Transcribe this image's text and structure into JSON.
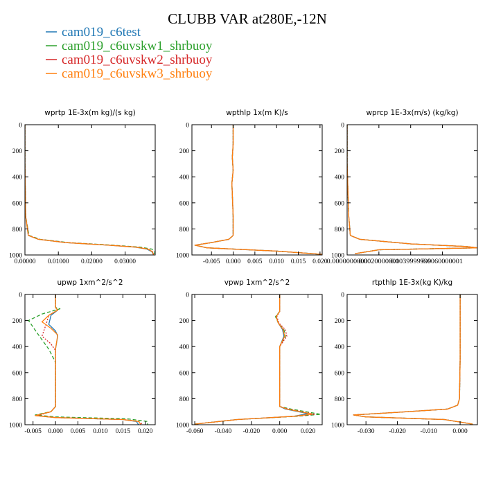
{
  "title": "CLUBB VAR at280E,-12N",
  "colors": {
    "cam019_c6test": "#1f77b4",
    "cam019_c6uvskw1_shrbuoy": "#2ca02c",
    "cam019_c6uvskw2_shrbuoy": "#d62728",
    "cam019_c6uvskw3_shrbuoy": "#ff7f0e"
  },
  "legend": [
    {
      "name": "cam019_c6test",
      "color": "#1f77b4"
    },
    {
      "name": "cam019_c6uvskw1_shrbuoy",
      "color": "#2ca02c"
    },
    {
      "name": "cam019_c6uvskw2_shrbuoy",
      "color": "#d62728"
    },
    {
      "name": "cam019_c6uvskw3_shrbuoy",
      "color": "#ff7f0e"
    }
  ],
  "chart_data": [
    {
      "type": "line",
      "title": "wprtp  1E-3x(m kg)/(s kg)",
      "xlabel": "",
      "ylabel": "",
      "xlim": [
        0,
        0.039
      ],
      "ylim": [
        1000,
        0
      ],
      "xticks": [
        "0.00000",
        "0.01000",
        "0.02000",
        "0.03000"
      ],
      "xtick_values": [
        0,
        0.01,
        0.02,
        0.03
      ],
      "yticks": [
        0,
        200,
        400,
        600,
        800,
        1000
      ],
      "series": [
        {
          "name": "cam019_c6test",
          "x": [
            0.0,
            0.0,
            0.0002,
            0.001,
            0.004,
            0.012,
            0.025,
            0.033,
            0.0365,
            0.038,
            0.0385
          ],
          "y": [
            0,
            300,
            700,
            850,
            880,
            905,
            925,
            940,
            955,
            975,
            1000
          ]
        },
        {
          "name": "cam019_c6uvskw1_shrbuoy",
          "x": [
            0.0,
            0.0,
            0.0002,
            0.0012,
            0.0045,
            0.013,
            0.0265,
            0.0345,
            0.038,
            0.039,
            0.0385
          ],
          "y": [
            0,
            300,
            700,
            850,
            880,
            905,
            925,
            940,
            955,
            975,
            1000
          ]
        },
        {
          "name": "cam019_c6uvskw2_shrbuoy",
          "x": [
            0.0,
            0.0,
            0.0002,
            0.0011,
            0.0042,
            0.0125,
            0.0255,
            0.0335,
            0.037,
            0.0383,
            0.0385
          ],
          "y": [
            0,
            300,
            700,
            850,
            880,
            905,
            925,
            940,
            955,
            975,
            1000
          ]
        },
        {
          "name": "cam019_c6uvskw3_shrbuoy",
          "x": [
            0.0,
            0.0,
            0.0002,
            0.001,
            0.004,
            0.012,
            0.025,
            0.0332,
            0.0368,
            0.0382,
            0.0385
          ],
          "y": [
            0,
            300,
            700,
            850,
            880,
            905,
            925,
            940,
            955,
            975,
            1000
          ]
        }
      ]
    },
    {
      "type": "line",
      "title": "wpthlp  1x(m K)/s",
      "xlabel": "",
      "ylabel": "",
      "xlim": [
        -0.0095,
        0.0205
      ],
      "ylim": [
        1000,
        0
      ],
      "xticks": [
        "-0.005",
        "0.000",
        "0.005",
        "0.010",
        "0.015",
        "0.020"
      ],
      "xtick_values": [
        -0.005,
        0,
        0.005,
        0.01,
        0.015,
        0.02
      ],
      "yticks": [
        0,
        200,
        400,
        600,
        800,
        1000
      ],
      "series": [
        {
          "name": "cam019_c6test",
          "x": [
            0.0,
            0.0,
            -0.0002,
            0.0,
            -0.0003,
            0.0,
            0.0,
            -0.001,
            -0.005,
            -0.0088,
            -0.006,
            0.01,
            0.0205
          ],
          "y": [
            0,
            150,
            250,
            350,
            450,
            700,
            850,
            880,
            905,
            925,
            945,
            970,
            995
          ]
        },
        {
          "name": "cam019_c6uvskw1_shrbuoy",
          "x": [
            0.0,
            0.0,
            -0.0002,
            0.0,
            -0.0003,
            0.0,
            0.0,
            -0.001,
            -0.005,
            -0.0088,
            -0.006,
            0.01,
            0.0205
          ],
          "y": [
            0,
            150,
            250,
            350,
            450,
            700,
            850,
            880,
            905,
            925,
            945,
            970,
            995
          ]
        },
        {
          "name": "cam019_c6uvskw2_shrbuoy",
          "x": [
            0.0,
            0.0,
            -0.0002,
            0.0,
            -0.0003,
            0.0,
            0.0,
            -0.001,
            -0.005,
            -0.0088,
            -0.006,
            0.01,
            0.0205
          ],
          "y": [
            0,
            150,
            250,
            350,
            450,
            700,
            850,
            880,
            905,
            925,
            945,
            970,
            995
          ]
        },
        {
          "name": "cam019_c6uvskw3_shrbuoy",
          "x": [
            0.0,
            0.0,
            -0.0002,
            0.0,
            -0.0003,
            0.0,
            0.0,
            -0.001,
            -0.005,
            -0.0088,
            -0.006,
            0.01,
            0.0205
          ],
          "y": [
            0,
            150,
            250,
            350,
            450,
            700,
            850,
            880,
            905,
            925,
            945,
            970,
            995
          ]
        }
      ]
    },
    {
      "type": "line",
      "title": "wprcp  1E-3x(m/s) (kg/kg)",
      "xlabel": "",
      "ylabel": "",
      "xlim": [
        0,
        0.0082
      ],
      "ylim": [
        1000,
        0
      ],
      "xticks": [
        "0.0000000000",
        "0.0020000001",
        "0.0039999999",
        "0.0060000001"
      ],
      "xtick_values": [
        0,
        0.002,
        0.004,
        0.006
      ],
      "yticks": [
        0,
        200,
        400,
        600,
        800,
        1000
      ],
      "series": [
        {
          "name": "cam019_c6test",
          "x": [
            0.0,
            0.0,
            0.0001,
            0.0002,
            0.0008,
            0.004,
            0.0075,
            0.0082,
            0.002,
            0.0005
          ],
          "y": [
            0,
            300,
            700,
            850,
            880,
            915,
            935,
            945,
            960,
            990
          ]
        },
        {
          "name": "cam019_c6uvskw1_shrbuoy",
          "x": [
            0.0,
            0.0,
            0.0001,
            0.0002,
            0.0008,
            0.004,
            0.0075,
            0.0082,
            0.002,
            0.0005
          ],
          "y": [
            0,
            300,
            700,
            850,
            880,
            915,
            935,
            945,
            960,
            990
          ]
        },
        {
          "name": "cam019_c6uvskw2_shrbuoy",
          "x": [
            0.0,
            0.0,
            0.0001,
            0.0002,
            0.0008,
            0.004,
            0.0075,
            0.0082,
            0.002,
            0.0005
          ],
          "y": [
            0,
            300,
            700,
            850,
            880,
            915,
            935,
            945,
            960,
            990
          ]
        },
        {
          "name": "cam019_c6uvskw3_shrbuoy",
          "x": [
            0.0,
            0.0,
            0.0001,
            0.0002,
            0.0008,
            0.004,
            0.0075,
            0.0082,
            0.002,
            0.0005
          ],
          "y": [
            0,
            300,
            700,
            850,
            880,
            915,
            935,
            945,
            960,
            990
          ]
        }
      ]
    },
    {
      "type": "line",
      "title": "upwp  1xm^2/s^2",
      "xlabel": "",
      "ylabel": "",
      "xlim": [
        -0.0068,
        0.0222
      ],
      "ylim": [
        1000,
        0
      ],
      "xticks": [
        "-0.005",
        "0.000",
        "0.005",
        "0.010",
        "0.015",
        "0.020"
      ],
      "xtick_values": [
        -0.005,
        0,
        0.005,
        0.01,
        0.015,
        0.02
      ],
      "yticks": [
        0,
        200,
        400,
        600,
        800,
        1000
      ],
      "series": [
        {
          "name": "cam019_c6test",
          "x": [
            0.0,
            0.0,
            0.0005,
            -0.001,
            -0.0015,
            0.0,
            0.0005,
            0.0,
            0.0,
            -0.001,
            -0.0045,
            0.0,
            0.015,
            0.018,
            0.0185
          ],
          "y": [
            0,
            100,
            120,
            160,
            230,
            280,
            320,
            420,
            860,
            900,
            930,
            945,
            960,
            975,
            1000
          ]
        },
        {
          "name": "cam019_c6uvskw1_shrbuoy",
          "x": [
            0.0,
            0.0,
            0.001,
            -0.003,
            -0.006,
            -0.004,
            -0.0015,
            0.0,
            0.0,
            -0.001,
            -0.0045,
            0.0,
            0.016,
            0.0205,
            0.0205
          ],
          "y": [
            0,
            100,
            110,
            150,
            200,
            300,
            420,
            520,
            860,
            900,
            925,
            940,
            955,
            975,
            1000
          ]
        },
        {
          "name": "cam019_c6uvskw2_shrbuoy",
          "x": [
            0.0,
            0.0,
            0.0005,
            -0.0015,
            -0.002,
            -0.003,
            -0.001,
            0.0,
            0.0,
            -0.001,
            -0.004,
            0.0,
            0.015,
            0.0185,
            0.0195
          ],
          "y": [
            0,
            100,
            120,
            160,
            220,
            320,
            380,
            430,
            860,
            900,
            930,
            945,
            960,
            975,
            1000
          ]
        },
        {
          "name": "cam019_c6uvskw3_shrbuoy",
          "x": [
            0.0,
            0.0,
            0.0005,
            -0.0015,
            -0.003,
            -0.001,
            0.0005,
            0.0,
            0.0,
            -0.001,
            -0.0045,
            0.0,
            0.015,
            0.0185,
            0.019
          ],
          "y": [
            0,
            100,
            120,
            160,
            210,
            260,
            310,
            420,
            860,
            900,
            930,
            945,
            960,
            975,
            1000
          ]
        }
      ]
    },
    {
      "type": "line",
      "title": "vpwp  1xm^2/s^2",
      "xlabel": "",
      "ylabel": "",
      "xlim": [
        -0.062,
        0.03
      ],
      "ylim": [
        1000,
        0
      ],
      "xticks": [
        "-0.060",
        "-0.040",
        "-0.020",
        "0.000",
        "0.020"
      ],
      "xtick_values": [
        -0.06,
        -0.04,
        -0.02,
        0,
        0.02
      ],
      "yticks": [
        0,
        200,
        400,
        600,
        800,
        1000
      ],
      "series": [
        {
          "name": "cam019_c6test",
          "x": [
            0.0,
            0.0,
            -0.0025,
            -0.001,
            0.002,
            0.003,
            0.0,
            0.0,
            0.004,
            0.02,
            0.01,
            -0.03,
            -0.06
          ],
          "y": [
            0,
            130,
            170,
            220,
            270,
            320,
            400,
            860,
            880,
            915,
            935,
            960,
            995
          ]
        },
        {
          "name": "cam019_c6uvskw1_shrbuoy",
          "x": [
            0.0,
            0.0,
            -0.003,
            -0.001,
            0.003,
            0.004,
            0.0,
            0.0,
            0.008,
            0.029,
            0.012,
            -0.03,
            -0.06
          ],
          "y": [
            0,
            130,
            170,
            220,
            270,
            320,
            400,
            860,
            880,
            920,
            935,
            960,
            995
          ]
        },
        {
          "name": "cam019_c6uvskw2_shrbuoy",
          "x": [
            0.0,
            0.0,
            -0.002,
            -0.0005,
            0.004,
            0.005,
            0.0,
            0.0,
            0.006,
            0.025,
            0.011,
            -0.03,
            -0.06
          ],
          "y": [
            0,
            130,
            170,
            220,
            270,
            320,
            400,
            860,
            880,
            920,
            935,
            960,
            995
          ]
        },
        {
          "name": "cam019_c6uvskw3_shrbuoy",
          "x": [
            0.0,
            0.0,
            -0.0025,
            -0.001,
            0.0025,
            0.0035,
            0.0,
            0.0,
            0.005,
            0.023,
            0.01,
            -0.03,
            -0.06
          ],
          "y": [
            0,
            130,
            170,
            220,
            270,
            320,
            400,
            860,
            880,
            918,
            935,
            960,
            995
          ]
        }
      ]
    },
    {
      "type": "line",
      "title": "rtpthlp  1E-3x(kg K)/kg",
      "xlabel": "",
      "ylabel": "",
      "xlim": [
        -0.036,
        0.0055
      ],
      "ylim": [
        1000,
        0
      ],
      "xticks": [
        "-0.030",
        "-0.020",
        "-0.010",
        "0.000"
      ],
      "xtick_values": [
        -0.03,
        -0.02,
        -0.01,
        0
      ],
      "yticks": [
        0,
        200,
        400,
        600,
        800,
        1000
      ],
      "series": [
        {
          "name": "cam019_c6test",
          "x": [
            0.0,
            0.0,
            -0.0002,
            -0.0008,
            -0.004,
            -0.02,
            -0.034,
            -0.03,
            -0.005,
            0.004
          ],
          "y": [
            0,
            500,
            800,
            850,
            880,
            905,
            925,
            940,
            960,
            995
          ]
        },
        {
          "name": "cam019_c6uvskw1_shrbuoy",
          "x": [
            0.0,
            0.0,
            -0.0002,
            -0.0008,
            -0.004,
            -0.02,
            -0.034,
            -0.03,
            -0.005,
            0.004
          ],
          "y": [
            0,
            500,
            800,
            850,
            880,
            905,
            925,
            940,
            960,
            995
          ]
        },
        {
          "name": "cam019_c6uvskw2_shrbuoy",
          "x": [
            0.0,
            0.0,
            -0.0002,
            -0.0008,
            -0.004,
            -0.02,
            -0.034,
            -0.03,
            -0.005,
            0.004
          ],
          "y": [
            0,
            500,
            800,
            850,
            880,
            905,
            925,
            940,
            960,
            995
          ]
        },
        {
          "name": "cam019_c6uvskw3_shrbuoy",
          "x": [
            0.0,
            0.0,
            -0.0002,
            -0.0008,
            -0.004,
            -0.02,
            -0.034,
            -0.03,
            -0.005,
            0.004
          ],
          "y": [
            0,
            500,
            800,
            850,
            880,
            905,
            925,
            940,
            960,
            995
          ]
        }
      ]
    }
  ]
}
